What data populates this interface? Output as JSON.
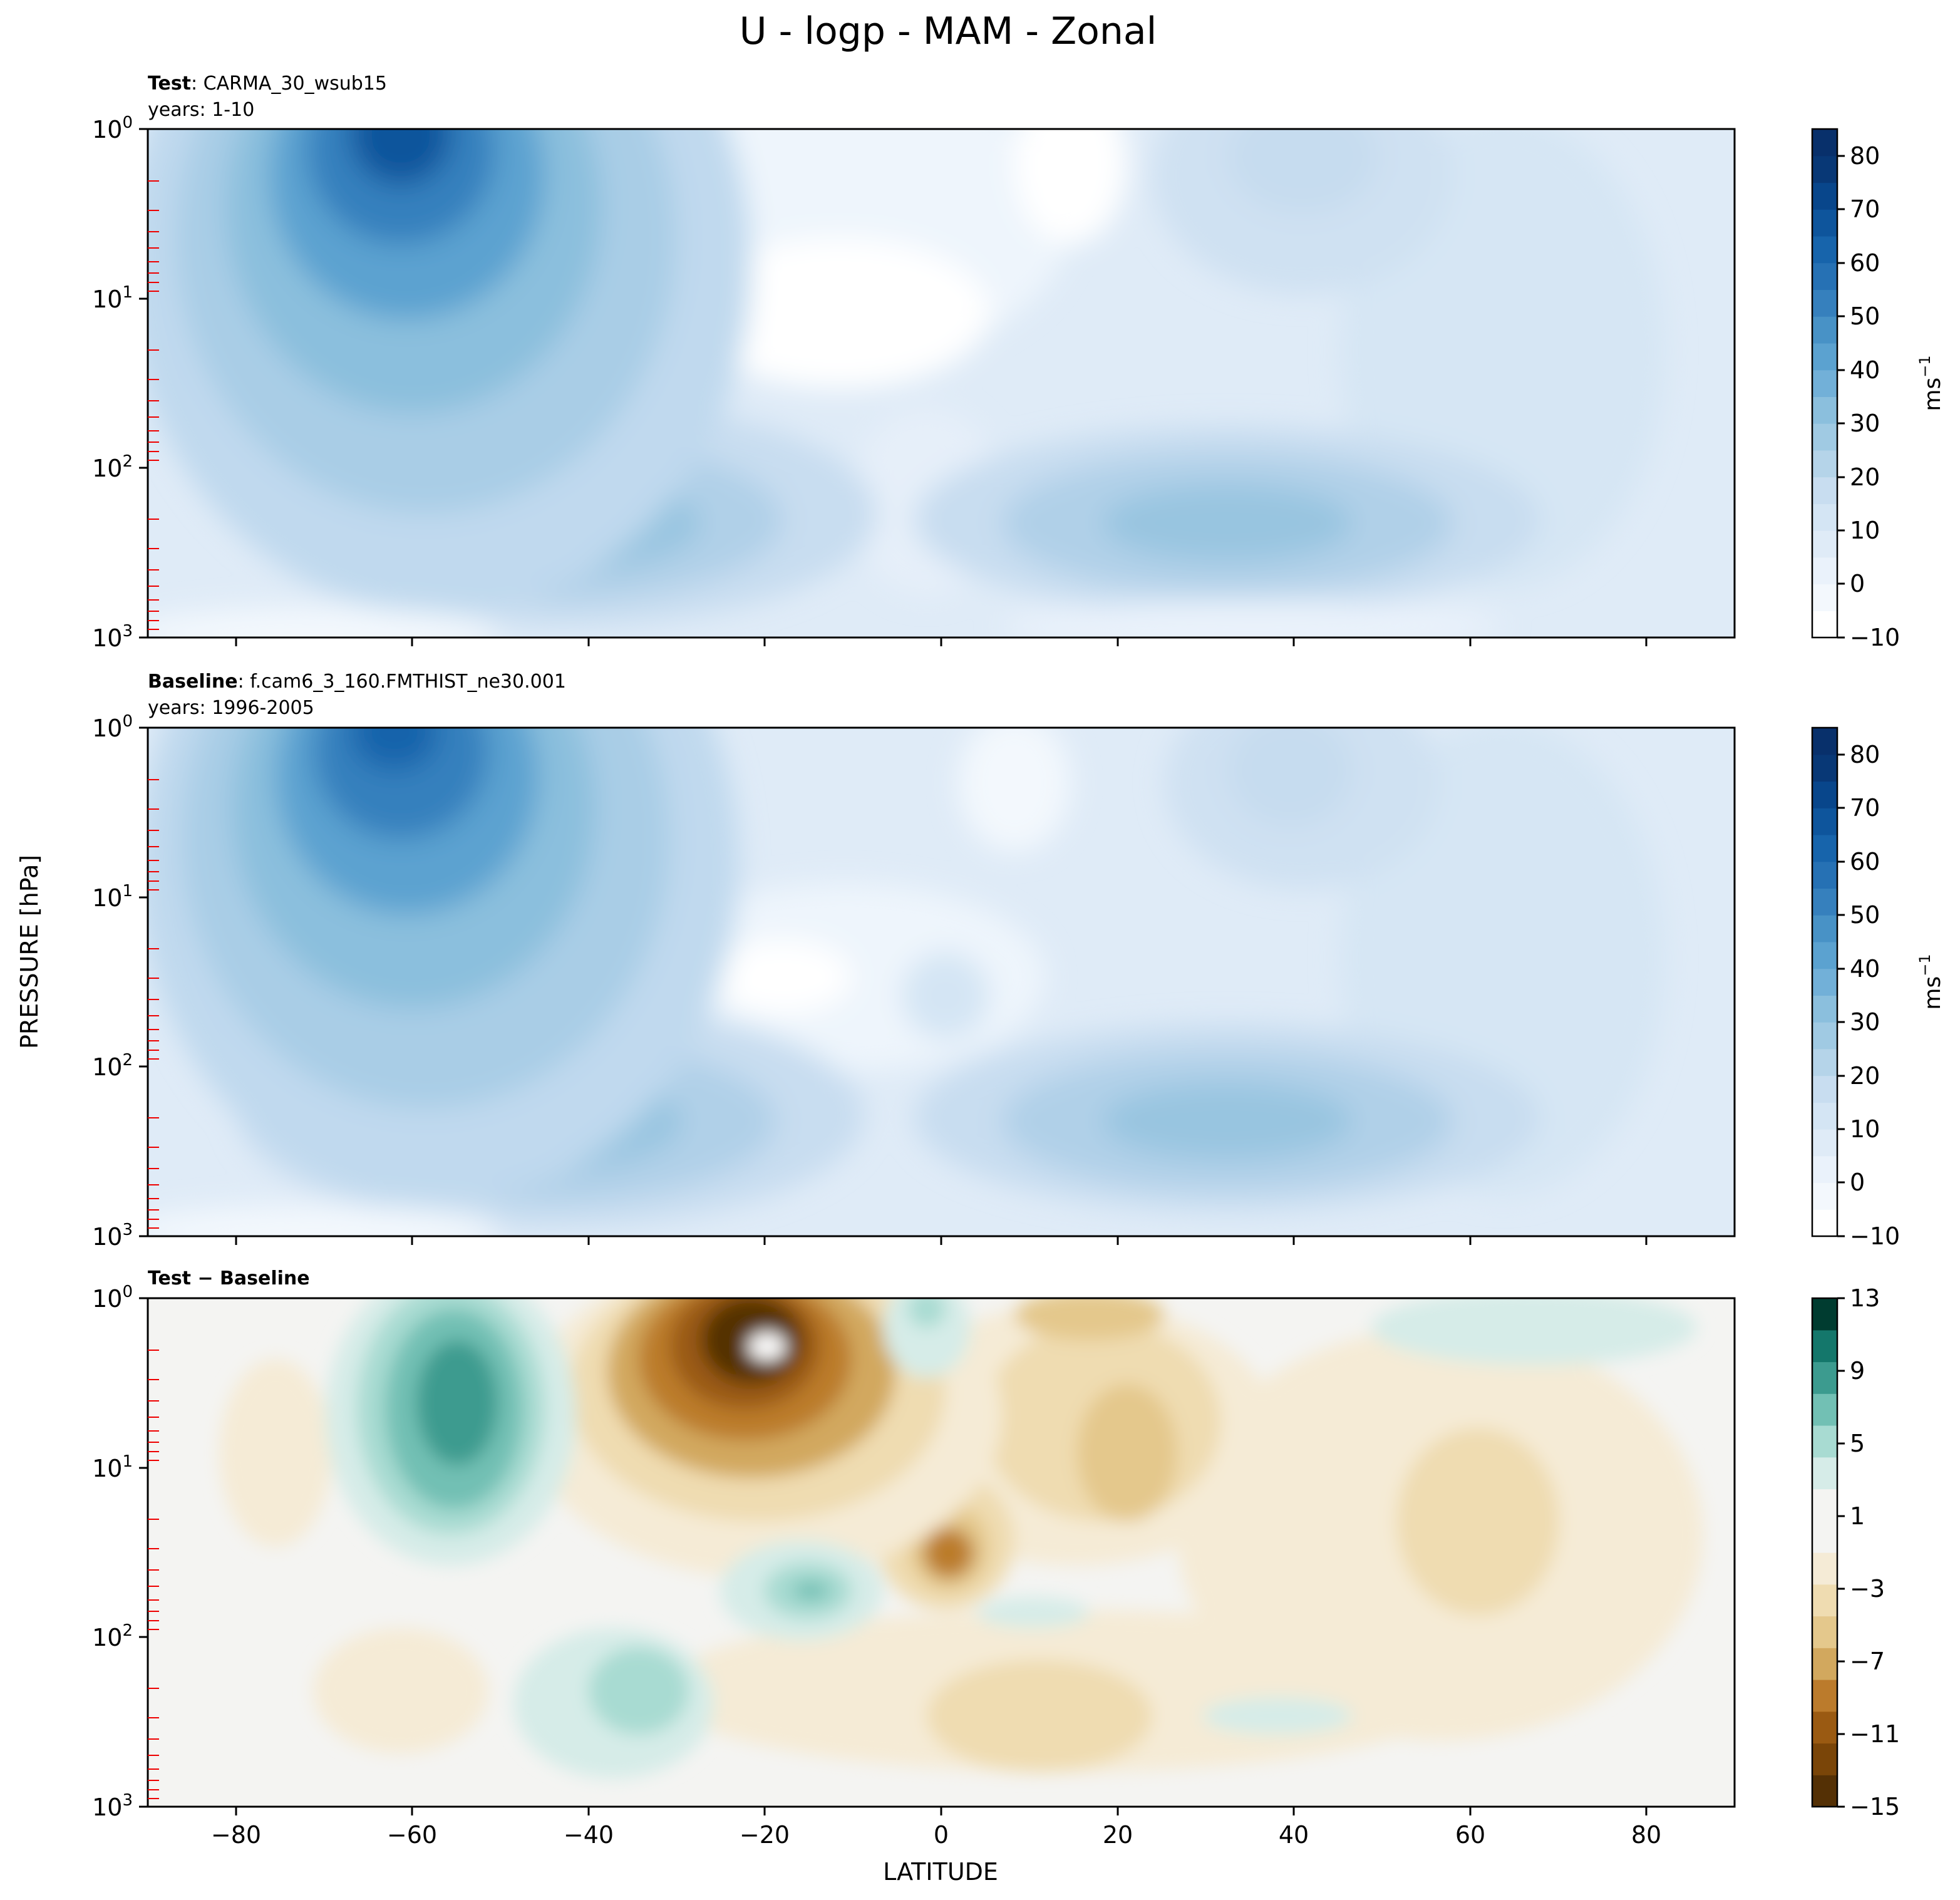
{
  "figure": {
    "title": "U - logp - MAM - Zonal",
    "ylabel": "PRESSURE [hPa]",
    "xlabel": "LATITUDE"
  },
  "chart_data": [
    {
      "type": "heatmap",
      "panel": "test",
      "title_bold": "Test",
      "title_rest": ": CARMA_30_wsub15",
      "subtitle": "years: 1-10",
      "x_ticks": [
        "−80",
        "−60",
        "−40",
        "−20",
        "0",
        "20",
        "40",
        "60",
        "80"
      ],
      "xlim": [
        -90,
        90
      ],
      "y_scale": "log",
      "y_ticks": [
        {
          "base": "10",
          "exp": "0"
        },
        {
          "base": "10",
          "exp": "1"
        },
        {
          "base": "10",
          "exp": "2"
        },
        {
          "base": "10",
          "exp": "3"
        }
      ],
      "ylim": [
        1000,
        1
      ],
      "colorbar": {
        "ticks": [
          "−10",
          "0",
          "10",
          "20",
          "30",
          "40",
          "50",
          "60",
          "70",
          "80"
        ],
        "range": [
          -10,
          85
        ],
        "label_base": "ms",
        "label_exp": "−1",
        "colors": [
          "#ffffff",
          "#f3f8fd",
          "#eaf2fb",
          "#dfebf7",
          "#d4e5f4",
          "#c8ddf0",
          "#b5d4e9",
          "#a0cae3",
          "#8bbfdd",
          "#72b0d8",
          "#5ba2d0",
          "#4892c6",
          "#3680bd",
          "#2671b4",
          "#1764ab",
          "#0e559c",
          "#08468b",
          "#083876",
          "#08306b"
        ]
      },
      "features": [
        {
          "lat": -60,
          "p": 1.2,
          "value": 75
        },
        {
          "lat": -55,
          "p": 220,
          "value": 35
        },
        {
          "lat": 30,
          "p": 200,
          "value": 30
        },
        {
          "lat": 35,
          "p": 2.5,
          "value": 20
        },
        {
          "lat": 0,
          "p": 8,
          "value": -2
        }
      ]
    },
    {
      "type": "heatmap",
      "panel": "baseline",
      "title_bold": "Baseline",
      "title_rest": ": f.cam6_3_160.FMTHIST_ne30.001",
      "subtitle": "years: 1996-2005",
      "x_ticks": [
        "−80",
        "−60",
        "−40",
        "−20",
        "0",
        "20",
        "40",
        "60",
        "80"
      ],
      "xlim": [
        -90,
        90
      ],
      "y_scale": "log",
      "y_ticks": [
        {
          "base": "10",
          "exp": "0"
        },
        {
          "base": "10",
          "exp": "1"
        },
        {
          "base": "10",
          "exp": "2"
        },
        {
          "base": "10",
          "exp": "3"
        }
      ],
      "ylim": [
        1000,
        1
      ],
      "colorbar": {
        "ticks": [
          "−10",
          "0",
          "10",
          "20",
          "30",
          "40",
          "50",
          "60",
          "70",
          "80"
        ],
        "range": [
          -10,
          85
        ],
        "label_base": "ms",
        "label_exp": "−1",
        "colors": [
          "#ffffff",
          "#f3f8fd",
          "#eaf2fb",
          "#dfebf7",
          "#d4e5f4",
          "#c8ddf0",
          "#b5d4e9",
          "#a0cae3",
          "#8bbfdd",
          "#72b0d8",
          "#5ba2d0",
          "#4892c6",
          "#3680bd",
          "#2671b4",
          "#1764ab",
          "#0e559c",
          "#08468b",
          "#083876",
          "#08306b"
        ]
      },
      "features": [
        {
          "lat": -60,
          "p": 1.2,
          "value": 72
        },
        {
          "lat": -55,
          "p": 220,
          "value": 35
        },
        {
          "lat": 30,
          "p": 200,
          "value": 30
        },
        {
          "lat": 35,
          "p": 2.5,
          "value": 20
        },
        {
          "lat": -20,
          "p": 25,
          "value": -3
        }
      ]
    },
    {
      "type": "heatmap",
      "panel": "difference",
      "title_bold": "Test − Baseline",
      "title_rest": "",
      "subtitle": "",
      "x_ticks": [
        "−80",
        "−60",
        "−40",
        "−20",
        "0",
        "20",
        "40",
        "60",
        "80"
      ],
      "xlim": [
        -90,
        90
      ],
      "y_scale": "log",
      "y_ticks": [
        {
          "base": "10",
          "exp": "0"
        },
        {
          "base": "10",
          "exp": "1"
        },
        {
          "base": "10",
          "exp": "2"
        },
        {
          "base": "10",
          "exp": "3"
        }
      ],
      "ylim": [
        1000,
        1
      ],
      "colorbar": {
        "ticks": [
          "−15",
          "−11",
          "−7",
          "−3",
          "1",
          "5",
          "9",
          "13"
        ],
        "range": [
          -15,
          13
        ],
        "label_base": "",
        "label_exp": "",
        "colors": [
          "#543005",
          "#7a4508",
          "#9a5a12",
          "#bb7b2c",
          "#d2a85e",
          "#e4c88c",
          "#efdcb1",
          "#f5ebd6",
          "#f4f4f2",
          "#f4f4f2",
          "#d6ece8",
          "#a8dbd2",
          "#72c0b4",
          "#3c9b8f",
          "#14776b",
          "#003c30"
        ]
      },
      "features": [
        {
          "lat": -20,
          "p": 2,
          "value": -14
        },
        {
          "lat": -57,
          "p": 4,
          "value": 9
        },
        {
          "lat": 1,
          "p": 25,
          "value": -7
        },
        {
          "lat": -14,
          "p": 50,
          "value": 5
        },
        {
          "lat": -33,
          "p": 250,
          "value": 3
        }
      ]
    }
  ]
}
